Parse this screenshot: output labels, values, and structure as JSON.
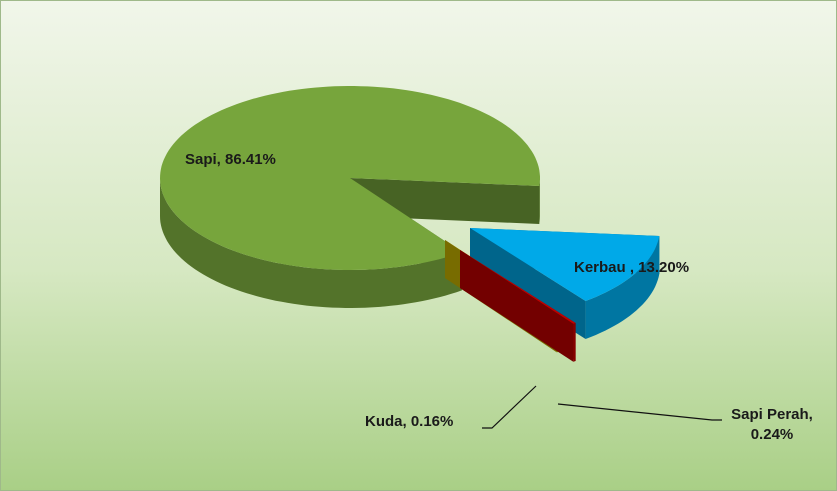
{
  "chart_data": {
    "type": "pie",
    "values": [
      86.41,
      13.2,
      0.24,
      0.16
    ],
    "value_labels": [
      "Sapi, 86.41%",
      "Kerbau , 13.20%",
      "Sapi Perah, 0.24%",
      "Kuda, 0.16%"
    ],
    "colors": [
      "#77a53c",
      "#00a9e8",
      "#c00000",
      "#c8b400"
    ]
  }
}
